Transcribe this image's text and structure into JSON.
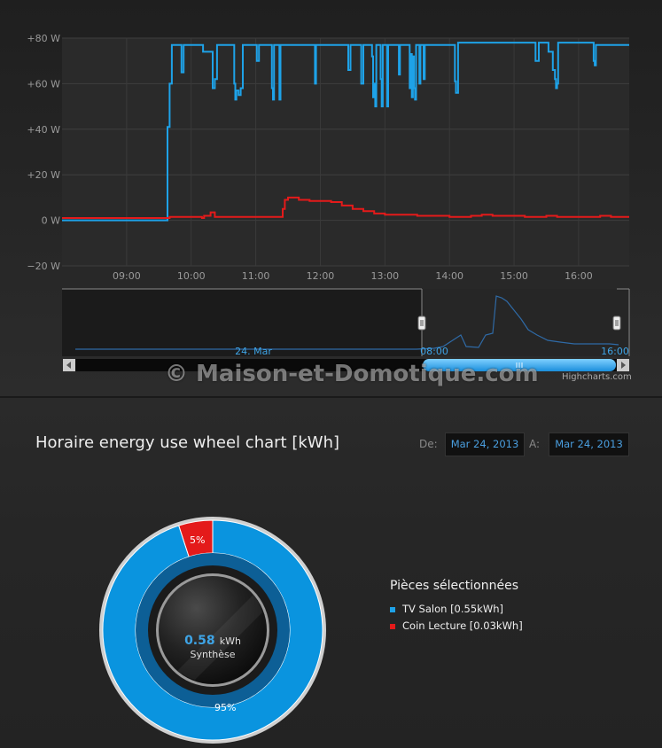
{
  "chart_data": [
    {
      "type": "line",
      "title": "",
      "xlabel": "",
      "ylabel": "",
      "x_ticks": [
        "09:00",
        "10:00",
        "11:00",
        "12:00",
        "13:00",
        "14:00",
        "15:00",
        "16:00"
      ],
      "y_ticks": [
        "+80 W",
        "+60 W",
        "+40 W",
        "+20 W",
        "0 W",
        "−20 W"
      ],
      "xlim": [
        "08:00",
        "16:47"
      ],
      "ylim": [
        -20,
        80
      ],
      "grid": true,
      "series": [
        {
          "color": "#1ea2e8",
          "points": [
            [
              "08:00",
              0
            ],
            [
              "09:37",
              0
            ],
            [
              "09:38",
              41
            ],
            [
              "09:40",
              60
            ],
            [
              "09:42",
              77
            ],
            [
              "09:50",
              77
            ],
            [
              "09:51",
              65
            ],
            [
              "09:53",
              77
            ],
            [
              "10:10",
              77
            ],
            [
              "10:11",
              74
            ],
            [
              "10:19",
              74
            ],
            [
              "10:20",
              58
            ],
            [
              "10:22",
              62
            ],
            [
              "10:24",
              77
            ],
            [
              "10:39",
              77
            ],
            [
              "10:40",
              60
            ],
            [
              "10:41",
              53
            ],
            [
              "10:42",
              57
            ],
            [
              "10:44",
              55
            ],
            [
              "10:46",
              58
            ],
            [
              "10:48",
              77
            ],
            [
              "11:00",
              77
            ],
            [
              "11:01",
              70
            ],
            [
              "11:03",
              77
            ],
            [
              "11:14",
              77
            ],
            [
              "11:15",
              58
            ],
            [
              "11:16",
              53
            ],
            [
              "11:17",
              77
            ],
            [
              "11:21",
              77
            ],
            [
              "11:22",
              53
            ],
            [
              "11:23",
              77
            ],
            [
              "11:54",
              77
            ],
            [
              "11:55",
              60
            ],
            [
              "11:56",
              77
            ],
            [
              "12:25",
              77
            ],
            [
              "12:26",
              66
            ],
            [
              "12:28",
              77
            ],
            [
              "12:37",
              77
            ],
            [
              "12:38",
              60
            ],
            [
              "12:40",
              77
            ],
            [
              "12:47",
              77
            ],
            [
              "12:48",
              72
            ],
            [
              "12:49",
              54
            ],
            [
              "12:50",
              60
            ],
            [
              "12:51",
              50
            ],
            [
              "12:52",
              77
            ],
            [
              "12:55",
              77
            ],
            [
              "12:56",
              62
            ],
            [
              "12:57",
              50
            ],
            [
              "12:58",
              77
            ],
            [
              "13:01",
              77
            ],
            [
              "13:02",
              50
            ],
            [
              "13:03",
              77
            ],
            [
              "13:12",
              77
            ],
            [
              "13:13",
              64
            ],
            [
              "13:14",
              77
            ],
            [
              "13:22",
              77
            ],
            [
              "13:23",
              58
            ],
            [
              "13:24",
              73
            ],
            [
              "13:25",
              54
            ],
            [
              "13:26",
              72
            ],
            [
              "13:27",
              58
            ],
            [
              "13:28",
              53
            ],
            [
              "13:29",
              77
            ],
            [
              "13:31",
              77
            ],
            [
              "13:32",
              60
            ],
            [
              "13:33",
              77
            ],
            [
              "13:35",
              77
            ],
            [
              "13:36",
              62
            ],
            [
              "13:37",
              77
            ],
            [
              "14:04",
              77
            ],
            [
              "14:05",
              61
            ],
            [
              "14:06",
              56
            ],
            [
              "14:08",
              78
            ],
            [
              "15:19",
              78
            ],
            [
              "15:20",
              70
            ],
            [
              "15:22",
              70
            ],
            [
              "15:23",
              78
            ],
            [
              "15:31",
              78
            ],
            [
              "15:32",
              74
            ],
            [
              "15:35",
              74
            ],
            [
              "15:36",
              66
            ],
            [
              "15:38",
              62
            ],
            [
              "15:39",
              58
            ],
            [
              "15:40",
              60
            ],
            [
              "15:41",
              78
            ],
            [
              "16:13",
              78
            ],
            [
              "16:14",
              70
            ],
            [
              "16:15",
              68
            ],
            [
              "16:16",
              77
            ],
            [
              "16:47",
              77
            ]
          ]
        },
        {
          "color": "#e41a1a",
          "points": [
            [
              "08:00",
              1
            ],
            [
              "09:38",
              1
            ],
            [
              "09:40",
              1.5
            ],
            [
              "10:00",
              1.5
            ],
            [
              "10:10",
              1
            ],
            [
              "10:12",
              2
            ],
            [
              "10:18",
              3.5
            ],
            [
              "10:22",
              1.5
            ],
            [
              "11:10",
              1.5
            ],
            [
              "11:18",
              1.5
            ],
            [
              "11:25",
              5
            ],
            [
              "11:27",
              9
            ],
            [
              "11:30",
              10
            ],
            [
              "11:40",
              9
            ],
            [
              "11:50",
              8.5
            ],
            [
              "12:10",
              8
            ],
            [
              "12:20",
              6.5
            ],
            [
              "12:30",
              5
            ],
            [
              "12:40",
              4
            ],
            [
              "12:50",
              3
            ],
            [
              "13:00",
              2.5
            ],
            [
              "13:30",
              2
            ],
            [
              "14:00",
              1.5
            ],
            [
              "14:20",
              2
            ],
            [
              "14:30",
              2.5
            ],
            [
              "14:40",
              2
            ],
            [
              "15:10",
              1.5
            ],
            [
              "15:30",
              2
            ],
            [
              "15:40",
              1.5
            ],
            [
              "16:20",
              2
            ],
            [
              "16:30",
              1.5
            ],
            [
              "16:47",
              1.5
            ]
          ]
        }
      ],
      "navigator": {
        "labels": [
          "24. Mar",
          "08:00",
          "16:00"
        ]
      }
    },
    {
      "type": "pie",
      "title": "Horaire energy use wheel chart [kWh]",
      "slices": [
        {
          "name": "TV Salon [0.55kWh]",
          "value": 95,
          "label": "95%",
          "color": "#0a94df"
        },
        {
          "name": "Coin Lecture [0.03kWh]",
          "value": 5,
          "label": "5%",
          "color": "#e41a1a"
        }
      ],
      "center_value": "0.58",
      "center_unit": "kWh",
      "center_label": "Synthèse",
      "legend_title": "Pièces sélectionnées"
    }
  ],
  "watermark": "© Maison-et-Domotique.com",
  "credit": "Highcharts.com",
  "date_range": {
    "from_label": "De:",
    "from_value": "Mar 24, 2013",
    "to_label": "A:",
    "to_value": "Mar 24, 2013"
  }
}
